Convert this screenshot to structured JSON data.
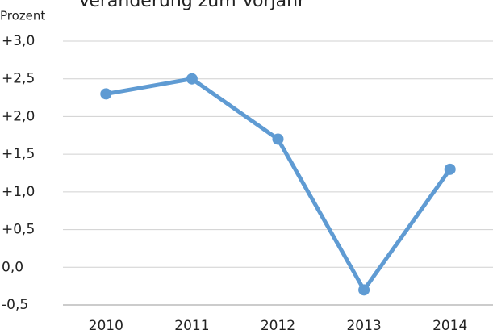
{
  "chart_data": {
    "type": "line",
    "title": "Veränderung zum Vorjahr",
    "y_label": "Prozent",
    "categories": [
      "2010",
      "2011",
      "2012",
      "2013",
      "2014"
    ],
    "series": [
      {
        "name": "Veränderung zum Vorjahr",
        "color": "#5f9bd3",
        "values": [
          2.3,
          2.5,
          1.7,
          -0.3,
          1.3
        ]
      }
    ],
    "ylim": [
      -0.5,
      3.0
    ],
    "yticks": [
      {
        "value": -0.5,
        "label": "-0,5"
      },
      {
        "value": 0,
        "label": "0,0"
      },
      {
        "value": 0.5,
        "label": "+0,5"
      },
      {
        "value": 1.0,
        "label": "+1,0"
      },
      {
        "value": 1.5,
        "label": "+1,5"
      },
      {
        "value": 2.0,
        "label": "+2,0"
      },
      {
        "value": 2.5,
        "label": "+2,5"
      },
      {
        "value": 3.0,
        "label": "+3,0"
      }
    ],
    "grid": true
  }
}
